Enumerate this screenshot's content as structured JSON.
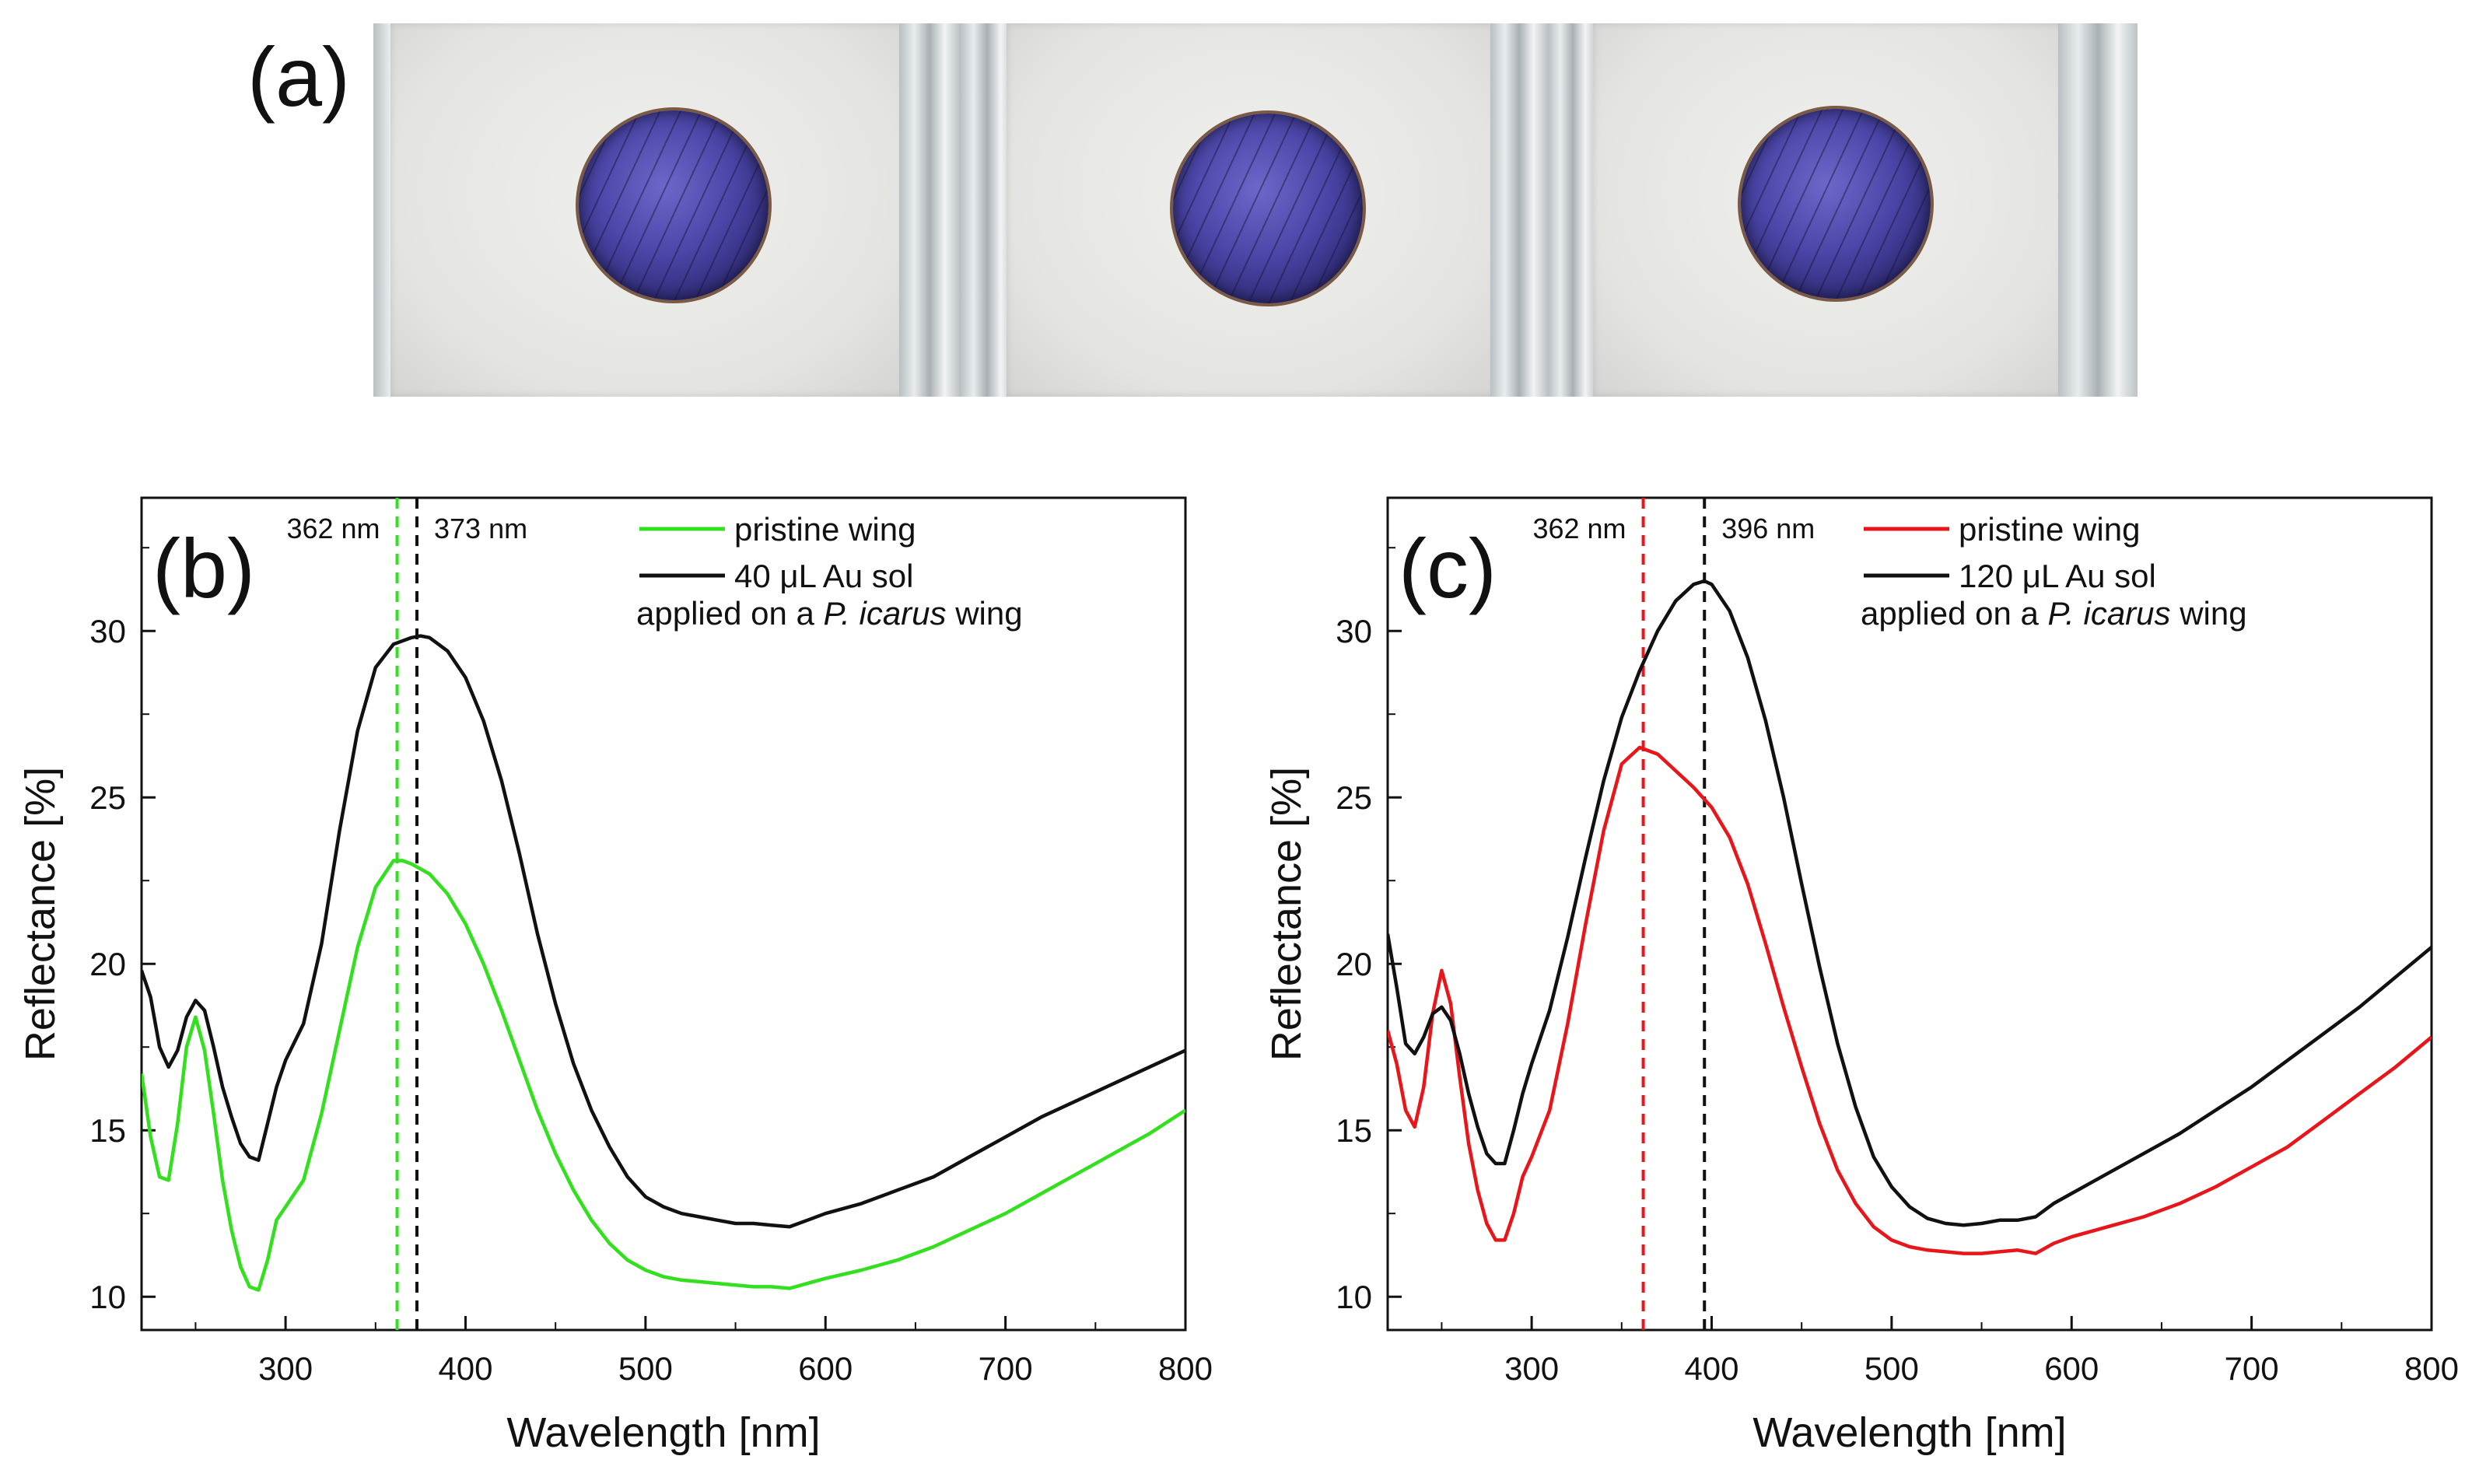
{
  "figure": {
    "panel_a_label": "(a)",
    "photo_panel": {
      "slide_count": 3,
      "colors": {
        "plate": "#e4e4e1",
        "wing": "#4a45a6",
        "glass": "#c8cdd0"
      }
    }
  },
  "chart_data": [
    {
      "type": "line",
      "panel_label": "(b)",
      "xlabel": "Wavelength [nm]",
      "ylabel": "Reflectance [%]",
      "xlim": [
        220,
        800
      ],
      "ylim": [
        9,
        34
      ],
      "x_ticks": [
        300,
        400,
        500,
        600,
        700,
        800
      ],
      "y_ticks": [
        10,
        15,
        20,
        25,
        30
      ],
      "grid": false,
      "legend": {
        "placement": "top-right",
        "entries": [
          {
            "label": "pristine wing",
            "color": "#33e01e"
          },
          {
            "label": "40 μL Au sol",
            "color": "#111111"
          }
        ],
        "note_prefix": "applied on a ",
        "note_species": "P. icarus",
        "note_suffix": " wing"
      },
      "vlines": [
        {
          "x": 362,
          "label": "362 nm",
          "color": "#33e01e"
        },
        {
          "x": 373,
          "label": "373 nm",
          "color": "#111111"
        }
      ],
      "series": [
        {
          "name": "pristine wing",
          "color": "#33e01e",
          "x": [
            220,
            225,
            230,
            235,
            240,
            245,
            250,
            255,
            260,
            265,
            270,
            275,
            280,
            285,
            290,
            295,
            300,
            310,
            320,
            330,
            340,
            350,
            360,
            365,
            370,
            380,
            390,
            400,
            410,
            420,
            430,
            440,
            450,
            460,
            470,
            480,
            490,
            500,
            510,
            520,
            530,
            540,
            550,
            560,
            570,
            580,
            590,
            600,
            620,
            640,
            660,
            680,
            700,
            720,
            740,
            760,
            780,
            800
          ],
          "y": [
            16.7,
            14.8,
            13.6,
            13.5,
            15.2,
            17.5,
            18.4,
            17.4,
            15.5,
            13.5,
            12.0,
            10.9,
            10.3,
            10.2,
            11.1,
            12.3,
            12.7,
            13.5,
            15.5,
            18.0,
            20.5,
            22.3,
            23.1,
            23.1,
            23.0,
            22.7,
            22.1,
            21.2,
            20.0,
            18.6,
            17.1,
            15.6,
            14.3,
            13.2,
            12.3,
            11.6,
            11.1,
            10.8,
            10.6,
            10.5,
            10.45,
            10.4,
            10.35,
            10.3,
            10.3,
            10.25,
            10.4,
            10.55,
            10.8,
            11.1,
            11.5,
            12.0,
            12.5,
            13.1,
            13.7,
            14.3,
            14.9,
            15.6
          ]
        },
        {
          "name": "40 μL Au sol",
          "color": "#111111",
          "x": [
            220,
            225,
            230,
            235,
            240,
            245,
            250,
            255,
            260,
            265,
            270,
            275,
            280,
            285,
            290,
            295,
            300,
            310,
            320,
            330,
            340,
            350,
            360,
            370,
            375,
            380,
            390,
            400,
            410,
            420,
            430,
            440,
            450,
            460,
            470,
            480,
            490,
            500,
            510,
            520,
            530,
            540,
            550,
            560,
            570,
            580,
            590,
            600,
            620,
            640,
            660,
            680,
            700,
            720,
            740,
            760,
            780,
            800
          ],
          "y": [
            19.8,
            19.0,
            17.5,
            16.9,
            17.4,
            18.4,
            18.9,
            18.6,
            17.5,
            16.3,
            15.4,
            14.6,
            14.2,
            14.1,
            15.2,
            16.3,
            17.1,
            18.2,
            20.6,
            24.0,
            27.0,
            28.9,
            29.6,
            29.8,
            29.85,
            29.8,
            29.4,
            28.6,
            27.3,
            25.5,
            23.3,
            20.9,
            18.8,
            17.0,
            15.6,
            14.5,
            13.6,
            13.0,
            12.7,
            12.5,
            12.4,
            12.3,
            12.2,
            12.2,
            12.15,
            12.1,
            12.3,
            12.5,
            12.8,
            13.2,
            13.6,
            14.2,
            14.8,
            15.4,
            15.9,
            16.4,
            16.9,
            17.4
          ]
        }
      ]
    },
    {
      "type": "line",
      "panel_label": "(c)",
      "xlabel": "Wavelength [nm]",
      "ylabel": "Reflectance [%]",
      "xlim": [
        220,
        800
      ],
      "ylim": [
        9,
        34
      ],
      "x_ticks": [
        300,
        400,
        500,
        600,
        700,
        800
      ],
      "y_ticks": [
        10,
        15,
        20,
        25,
        30
      ],
      "grid": false,
      "legend": {
        "placement": "top-right",
        "entries": [
          {
            "label": "pristine wing",
            "color": "#e8161b"
          },
          {
            "label": "120 μL Au sol",
            "color": "#111111"
          }
        ],
        "note_prefix": "applied on a ",
        "note_species": "P. icarus",
        "note_suffix": " wing"
      },
      "vlines": [
        {
          "x": 362,
          "label": "362 nm",
          "color": "#e8161b"
        },
        {
          "x": 396,
          "label": "396 nm",
          "color": "#111111"
        }
      ],
      "series": [
        {
          "name": "pristine wing",
          "color": "#e8161b",
          "x": [
            220,
            225,
            230,
            235,
            240,
            245,
            250,
            255,
            260,
            265,
            270,
            275,
            280,
            285,
            290,
            295,
            300,
            310,
            320,
            330,
            340,
            350,
            360,
            370,
            380,
            390,
            400,
            410,
            420,
            430,
            440,
            450,
            460,
            470,
            480,
            490,
            500,
            510,
            520,
            530,
            540,
            550,
            560,
            570,
            580,
            590,
            600,
            620,
            640,
            660,
            680,
            700,
            720,
            740,
            760,
            780,
            800
          ],
          "y": [
            18.0,
            17.0,
            15.6,
            15.1,
            16.3,
            18.5,
            19.8,
            18.8,
            16.6,
            14.6,
            13.2,
            12.2,
            11.7,
            11.7,
            12.5,
            13.6,
            14.2,
            15.6,
            18.2,
            21.2,
            24.0,
            26.0,
            26.5,
            26.3,
            25.8,
            25.3,
            24.7,
            23.8,
            22.4,
            20.6,
            18.7,
            16.9,
            15.2,
            13.8,
            12.8,
            12.1,
            11.7,
            11.5,
            11.4,
            11.35,
            11.3,
            11.3,
            11.35,
            11.4,
            11.3,
            11.6,
            11.8,
            12.1,
            12.4,
            12.8,
            13.3,
            13.9,
            14.5,
            15.3,
            16.1,
            16.9,
            17.8
          ]
        },
        {
          "name": "120 μL Au sol",
          "color": "#111111",
          "x": [
            220,
            225,
            230,
            235,
            240,
            245,
            250,
            255,
            260,
            265,
            270,
            275,
            280,
            285,
            290,
            295,
            300,
            310,
            320,
            330,
            340,
            350,
            360,
            370,
            380,
            390,
            396,
            400,
            410,
            420,
            430,
            440,
            450,
            460,
            470,
            480,
            490,
            500,
            510,
            520,
            530,
            540,
            550,
            560,
            570,
            580,
            590,
            600,
            620,
            640,
            660,
            680,
            700,
            720,
            740,
            760,
            780,
            800
          ],
          "y": [
            20.9,
            19.3,
            17.6,
            17.3,
            17.8,
            18.5,
            18.7,
            18.3,
            17.3,
            16.1,
            15.1,
            14.3,
            14.0,
            14.0,
            15.0,
            16.1,
            17.0,
            18.6,
            20.8,
            23.2,
            25.5,
            27.4,
            28.8,
            30.0,
            30.9,
            31.4,
            31.5,
            31.4,
            30.6,
            29.2,
            27.3,
            25.0,
            22.4,
            19.9,
            17.6,
            15.7,
            14.2,
            13.3,
            12.7,
            12.35,
            12.2,
            12.15,
            12.2,
            12.3,
            12.3,
            12.4,
            12.8,
            13.1,
            13.7,
            14.3,
            14.9,
            15.6,
            16.3,
            17.1,
            17.9,
            18.7,
            19.6,
            20.5
          ]
        }
      ]
    }
  ]
}
